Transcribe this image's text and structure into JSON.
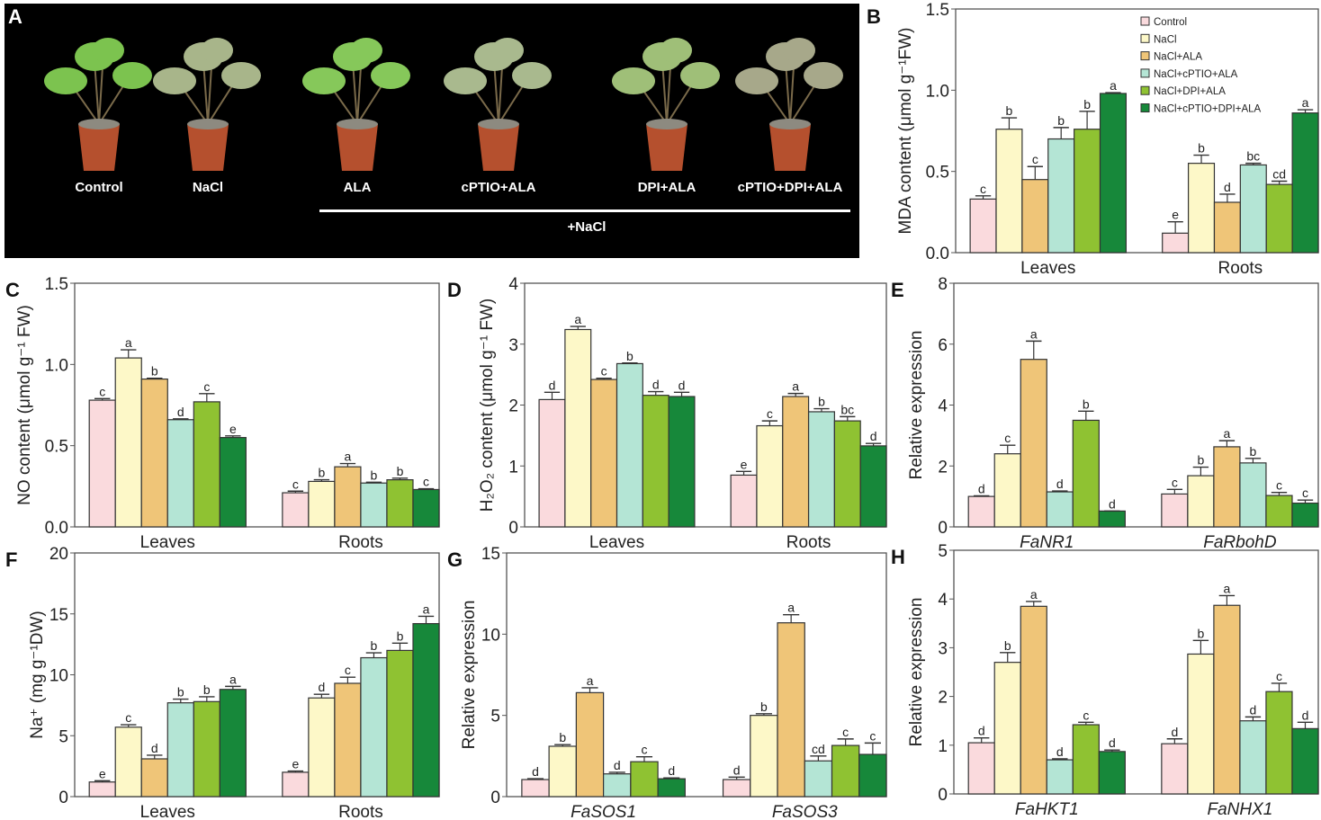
{
  "panel_a": {
    "letter": "A",
    "labels": [
      "Control",
      "NaCl",
      "ALA",
      "cPTIO+ALA",
      "DPI+ALA",
      "cPTIO+DPI+ALA"
    ],
    "group_label": "+NaCl"
  },
  "legend": {
    "entries": [
      "Control",
      "NaCl",
      "NaCl+ALA",
      "NaCl+cPTIO+ALA",
      "NaCl+DPI+ALA",
      "NaCl+cPTIO+DPI+ALA"
    ],
    "colors": [
      "#fadadd",
      "#fdf8c8",
      "#efc578",
      "#b4e5d5",
      "#8fc232",
      "#17883a"
    ]
  },
  "chart_data": [
    {
      "panel": "B",
      "type": "bar",
      "ylabel": "MDA content (μmol g⁻¹FW)",
      "categories": [
        "Leaves",
        "Roots"
      ],
      "ylim": [
        0,
        1.5
      ],
      "yticks": [
        "0.0",
        "0.5",
        "1.0",
        "1.5"
      ],
      "legend": "top-right",
      "series_values": [
        [
          0.33,
          0.76,
          0.45,
          0.7,
          0.76,
          0.98
        ],
        [
          0.12,
          0.55,
          0.31,
          0.54,
          0.42,
          0.86
        ]
      ],
      "errors": [
        [
          0.02,
          0.07,
          0.08,
          0.07,
          0.11,
          0.005
        ],
        [
          0.07,
          0.05,
          0.05,
          0.01,
          0.02,
          0.02
        ]
      ],
      "letters": [
        [
          "c",
          "b",
          "c",
          "b",
          "b",
          "a"
        ],
        [
          "e",
          "b",
          "d",
          "bc",
          "cd",
          "a"
        ]
      ]
    },
    {
      "panel": "C",
      "type": "bar",
      "ylabel": "NO content (μmol g⁻¹ FW)",
      "categories": [
        "Leaves",
        "Roots"
      ],
      "ylim": [
        0,
        1.5
      ],
      "yticks": [
        "0.0",
        "0.5",
        "1.0",
        "1.5"
      ],
      "series_values": [
        [
          0.78,
          1.04,
          0.91,
          0.66,
          0.77,
          0.55
        ],
        [
          0.21,
          0.28,
          0.37,
          0.27,
          0.29,
          0.23
        ]
      ],
      "errors": [
        [
          0.01,
          0.05,
          0.005,
          0.005,
          0.05,
          0.01
        ],
        [
          0.01,
          0.01,
          0.02,
          0.005,
          0.01,
          0.005
        ]
      ],
      "letters": [
        [
          "c",
          "a",
          "b",
          "d",
          "c",
          "e"
        ],
        [
          "c",
          "b",
          "a",
          "b",
          "b",
          "c"
        ]
      ]
    },
    {
      "panel": "D",
      "type": "bar",
      "ylabel": "H₂O₂ content (μmol g⁻¹ FW)",
      "categories": [
        "Leaves",
        "Roots"
      ],
      "ylim": [
        0,
        4
      ],
      "yticks": [
        "0",
        "1",
        "2",
        "3",
        "4"
      ],
      "series_values": [
        [
          2.09,
          3.24,
          2.42,
          2.68,
          2.16,
          2.14
        ],
        [
          0.85,
          1.66,
          2.14,
          1.89,
          1.74,
          1.33
        ]
      ],
      "errors": [
        [
          0.12,
          0.05,
          0.02,
          0.01,
          0.06,
          0.07
        ],
        [
          0.06,
          0.08,
          0.05,
          0.05,
          0.07,
          0.04
        ]
      ],
      "letters": [
        [
          "d",
          "a",
          "c",
          "b",
          "d",
          "d"
        ],
        [
          "e",
          "c",
          "a",
          "b",
          "bc",
          "d"
        ]
      ]
    },
    {
      "panel": "E",
      "type": "bar",
      "ylabel": "Relative expression",
      "italic_categories": true,
      "categories": [
        "FaNR1",
        "FaRbohD"
      ],
      "ylim": [
        0,
        8
      ],
      "yticks": [
        "0",
        "2",
        "4",
        "6",
        "8"
      ],
      "series_values": [
        [
          1.0,
          2.4,
          5.5,
          1.15,
          3.5,
          0.52
        ],
        [
          1.08,
          1.68,
          2.63,
          2.1,
          1.03,
          0.78
        ]
      ],
      "errors": [
        [
          0.02,
          0.28,
          0.6,
          0.03,
          0.3,
          0.0
        ],
        [
          0.15,
          0.28,
          0.2,
          0.15,
          0.1,
          0.1
        ]
      ],
      "letters": [
        [
          "d",
          "c",
          "a",
          "d",
          "b",
          "d"
        ],
        [
          "c",
          "b",
          "a",
          "b",
          "c",
          "c"
        ]
      ]
    },
    {
      "panel": "F",
      "type": "bar",
      "ylabel": "Na⁺ (mg g⁻¹DW)",
      "categories": [
        "Leaves",
        "Roots"
      ],
      "ylim": [
        0,
        20
      ],
      "yticks": [
        "0",
        "5",
        "10",
        "15",
        "20"
      ],
      "series_values": [
        [
          1.2,
          5.7,
          3.1,
          7.7,
          7.8,
          8.8
        ],
        [
          2.0,
          8.1,
          9.3,
          11.4,
          12.0,
          14.2
        ]
      ],
      "errors": [
        [
          0.1,
          0.2,
          0.3,
          0.3,
          0.4,
          0.25
        ],
        [
          0.1,
          0.3,
          0.5,
          0.4,
          0.6,
          0.6
        ]
      ],
      "letters": [
        [
          "e",
          "c",
          "d",
          "b",
          "b",
          "a"
        ],
        [
          "e",
          "d",
          "c",
          "b",
          "b",
          "a"
        ]
      ]
    },
    {
      "panel": "G",
      "type": "bar",
      "ylabel": "Relative expression",
      "italic_categories": true,
      "categories": [
        "FaSOS1",
        "FaSOS3"
      ],
      "ylim": [
        0,
        15
      ],
      "yticks": [
        "0",
        "5",
        "10",
        "15"
      ],
      "series_values": [
        [
          1.05,
          3.1,
          6.4,
          1.4,
          2.15,
          1.1
        ],
        [
          1.05,
          5.0,
          10.7,
          2.2,
          3.15,
          2.6
        ]
      ],
      "errors": [
        [
          0.05,
          0.1,
          0.3,
          0.1,
          0.3,
          0.05
        ],
        [
          0.15,
          0.1,
          0.5,
          0.3,
          0.4,
          0.7
        ]
      ],
      "letters": [
        [
          "d",
          "b",
          "a",
          "d",
          "c",
          "d"
        ],
        [
          "d",
          "b",
          "a",
          "cd",
          "c",
          "c"
        ]
      ]
    },
    {
      "panel": "H",
      "type": "bar",
      "ylabel": "Relative expression",
      "italic_categories": true,
      "categories": [
        "FaHKT1",
        "FaNHX1"
      ],
      "ylim": [
        0,
        5
      ],
      "yticks": [
        "0",
        "1",
        "2",
        "3",
        "4",
        "5"
      ],
      "series_values": [
        [
          1.05,
          2.7,
          3.85,
          0.7,
          1.42,
          0.87
        ],
        [
          1.03,
          2.87,
          3.87,
          1.5,
          2.1,
          1.34
        ]
      ],
      "errors": [
        [
          0.1,
          0.2,
          0.1,
          0.02,
          0.05,
          0.03
        ],
        [
          0.1,
          0.28,
          0.2,
          0.08,
          0.17,
          0.13
        ]
      ],
      "letters": [
        [
          "d",
          "b",
          "a",
          "d",
          "c",
          "d"
        ],
        [
          "d",
          "b",
          "a",
          "d",
          "c",
          "d"
        ]
      ]
    }
  ]
}
